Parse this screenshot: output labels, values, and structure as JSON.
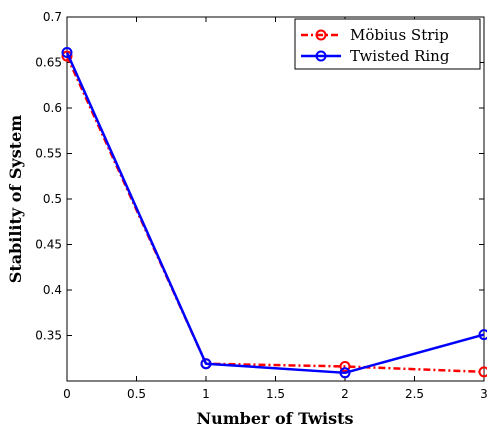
{
  "chart_data": {
    "type": "line",
    "xlabel": "Number of Twists",
    "ylabel": "Stability of System",
    "xlim": [
      0,
      3
    ],
    "ylim": [
      0.3,
      0.7
    ],
    "x_ticks": [
      "0",
      "0.5",
      "1",
      "1.5",
      "2",
      "2.5",
      "3"
    ],
    "y_ticks": [
      "0.35",
      "0.4",
      "0.45",
      "0.5",
      "0.55",
      "0.6",
      "0.65",
      "0.7"
    ],
    "grid": false,
    "legend_position": "top-right",
    "series": [
      {
        "name": "Möbius Strip",
        "color": "#ff0000",
        "line_style": "dash-dot",
        "marker": "circle",
        "x": [
          0,
          1,
          2,
          3
        ],
        "y": [
          0.657,
          0.319,
          0.316,
          0.31
        ]
      },
      {
        "name": "Twisted Ring",
        "color": "#0000ff",
        "line_style": "solid",
        "marker": "circle",
        "x": [
          0,
          1,
          2,
          3
        ],
        "y": [
          0.661,
          0.319,
          0.309,
          0.351
        ]
      }
    ]
  }
}
